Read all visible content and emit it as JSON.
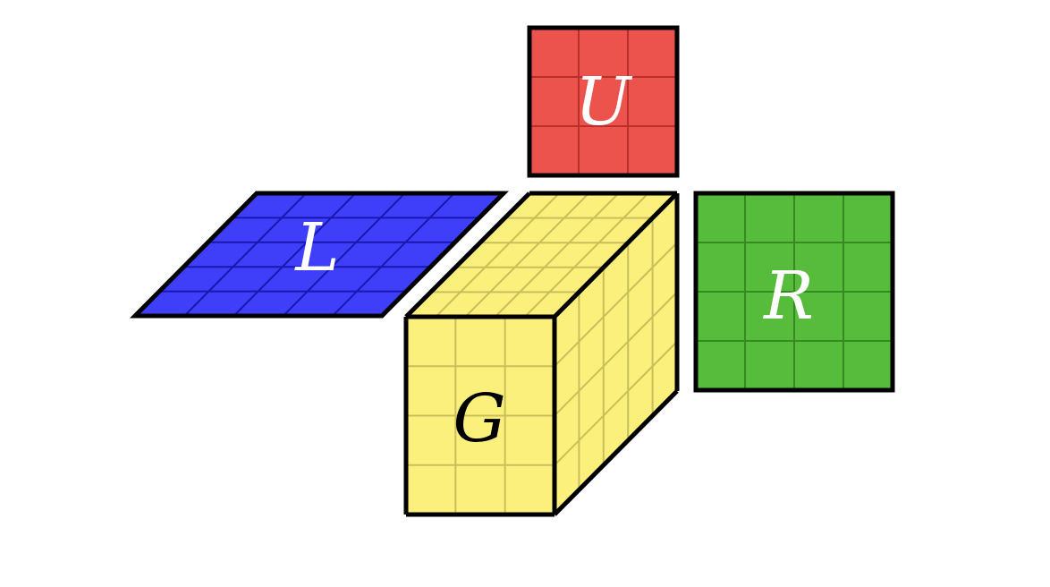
{
  "colors": {
    "background": "#ffffff",
    "outline": "#000000",
    "u_fill": "#ec534c",
    "u_grid": "#b8302a",
    "l_fill": "#3f3ffa",
    "l_grid": "#1818b0",
    "g_fill": "#fbf07c",
    "g_grid": "#c9bf5a",
    "r_fill": "#57bb3b",
    "r_grid": "#358a22",
    "label_light": "#ffffff",
    "label_dark": "#000000"
  },
  "blocks": {
    "u": {
      "label": "U",
      "grid": [
        3,
        3
      ]
    },
    "l": {
      "label": "L",
      "grid": [
        5,
        5
      ]
    },
    "r": {
      "label": "R",
      "grid": [
        4,
        4
      ]
    },
    "g": {
      "label": "G",
      "grid_front": [
        3,
        4
      ],
      "grid_top": [
        5,
        5
      ],
      "grid_side": [
        5,
        4
      ]
    }
  }
}
